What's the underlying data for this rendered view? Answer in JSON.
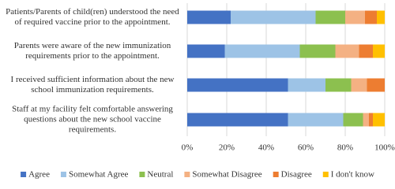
{
  "chart_data": {
    "type": "stacked-bar-horizontal",
    "categories": [
      [
        "Patients/Parents of child(ren) understood the need",
        "of required vaccine prior to the appointment."
      ],
      [
        "Parents were aware of the new immunization",
        "requirements prior to the appointment."
      ],
      [
        "I received sufficient information about the new",
        "school immunization requirements."
      ],
      [
        "Staff at my facility felt comfortable answering",
        "questions about the new school vaccine",
        "requirements."
      ]
    ],
    "series": [
      {
        "name": "Agree",
        "color": "#4472c4",
        "values": [
          22,
          19,
          51,
          51
        ]
      },
      {
        "name": "Somewhat Agree",
        "color": "#9dc3e6",
        "values": [
          43,
          38,
          19,
          28
        ]
      },
      {
        "name": "Neutral",
        "color": "#8cc04f",
        "values": [
          15,
          18,
          13,
          10
        ]
      },
      {
        "name": "Somewhat Disagree",
        "color": "#f4b183",
        "values": [
          10,
          12,
          8,
          3
        ]
      },
      {
        "name": "Disagree",
        "color": "#ed7d31",
        "values": [
          6,
          7,
          9,
          2
        ]
      },
      {
        "name": "I don't know",
        "color": "#ffc000",
        "values": [
          4,
          6,
          0,
          6
        ]
      }
    ],
    "xlim": [
      0,
      100
    ],
    "xticks": [
      {
        "value": 0,
        "label": "0%"
      },
      {
        "value": 20,
        "label": "20%"
      },
      {
        "value": 40,
        "label": "40%"
      },
      {
        "value": 60,
        "label": "60%"
      },
      {
        "value": 80,
        "label": "80%"
      },
      {
        "value": 100,
        "label": "100%"
      }
    ],
    "grid": true
  }
}
